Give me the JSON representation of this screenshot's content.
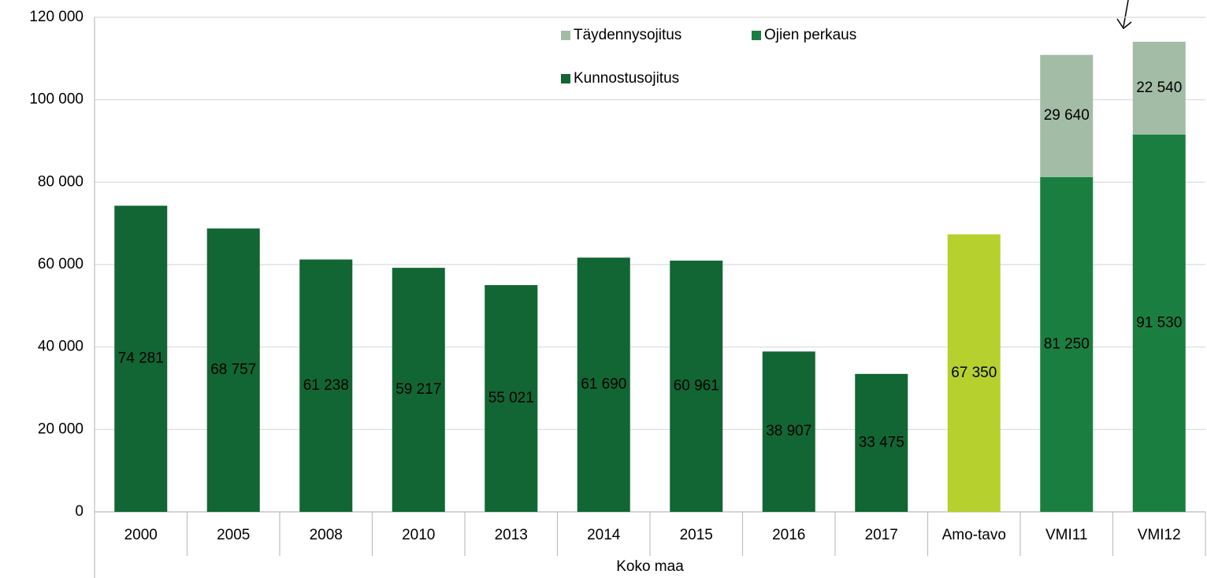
{
  "chart_data": {
    "type": "bar",
    "stacked": true,
    "x_label": "Koko maa",
    "categories": [
      "2000",
      "2005",
      "2008",
      "2010",
      "2013",
      "2014",
      "2015",
      "2016",
      "2017",
      "Amo-tavo",
      "VMI11",
      "VMI12"
    ],
    "series": [
      {
        "name": "Täydennysojitus",
        "color": "#a3bca6",
        "values": [
          null,
          null,
          null,
          null,
          null,
          null,
          null,
          null,
          null,
          null,
          29640,
          22540
        ],
        "value_labels": [
          null,
          null,
          null,
          null,
          null,
          null,
          null,
          null,
          null,
          null,
          "29 640",
          "22 540"
        ]
      },
      {
        "name": "Ojien perkaus",
        "color": "#1b7e41",
        "values": [
          null,
          null,
          null,
          null,
          null,
          null,
          null,
          null,
          null,
          null,
          81250,
          91530
        ],
        "value_labels": [
          null,
          null,
          null,
          null,
          null,
          null,
          null,
          null,
          null,
          null,
          "81 250",
          "91 530"
        ]
      },
      {
        "name": "Kunnostusojitus",
        "color": "#116634",
        "colors": [
          null,
          null,
          null,
          null,
          null,
          null,
          null,
          null,
          null,
          "#b6d12e",
          null,
          null
        ],
        "values": [
          74281,
          68757,
          61238,
          59217,
          55021,
          61690,
          60961,
          38907,
          33475,
          67350,
          null,
          null
        ],
        "value_labels": [
          "74 281",
          "68 757",
          "61 238",
          "59 217",
          "55 021",
          "61 690",
          "60 961",
          "38 907",
          "33 475",
          "67 350",
          null,
          null
        ]
      }
    ],
    "ylim": [
      0,
      120000
    ],
    "yticks": [
      0,
      {
        "value": 20000,
        "label": "20 000"
      },
      {
        "value": 40000,
        "label": "40 000"
      },
      {
        "value": 60000,
        "label": "60 000"
      },
      {
        "value": 80000,
        "label": "80 000"
      },
      {
        "value": 100000,
        "label": "100 000"
      },
      {
        "value": 120000,
        "label": "120 000"
      }
    ],
    "grid": true,
    "legend": "top"
  }
}
